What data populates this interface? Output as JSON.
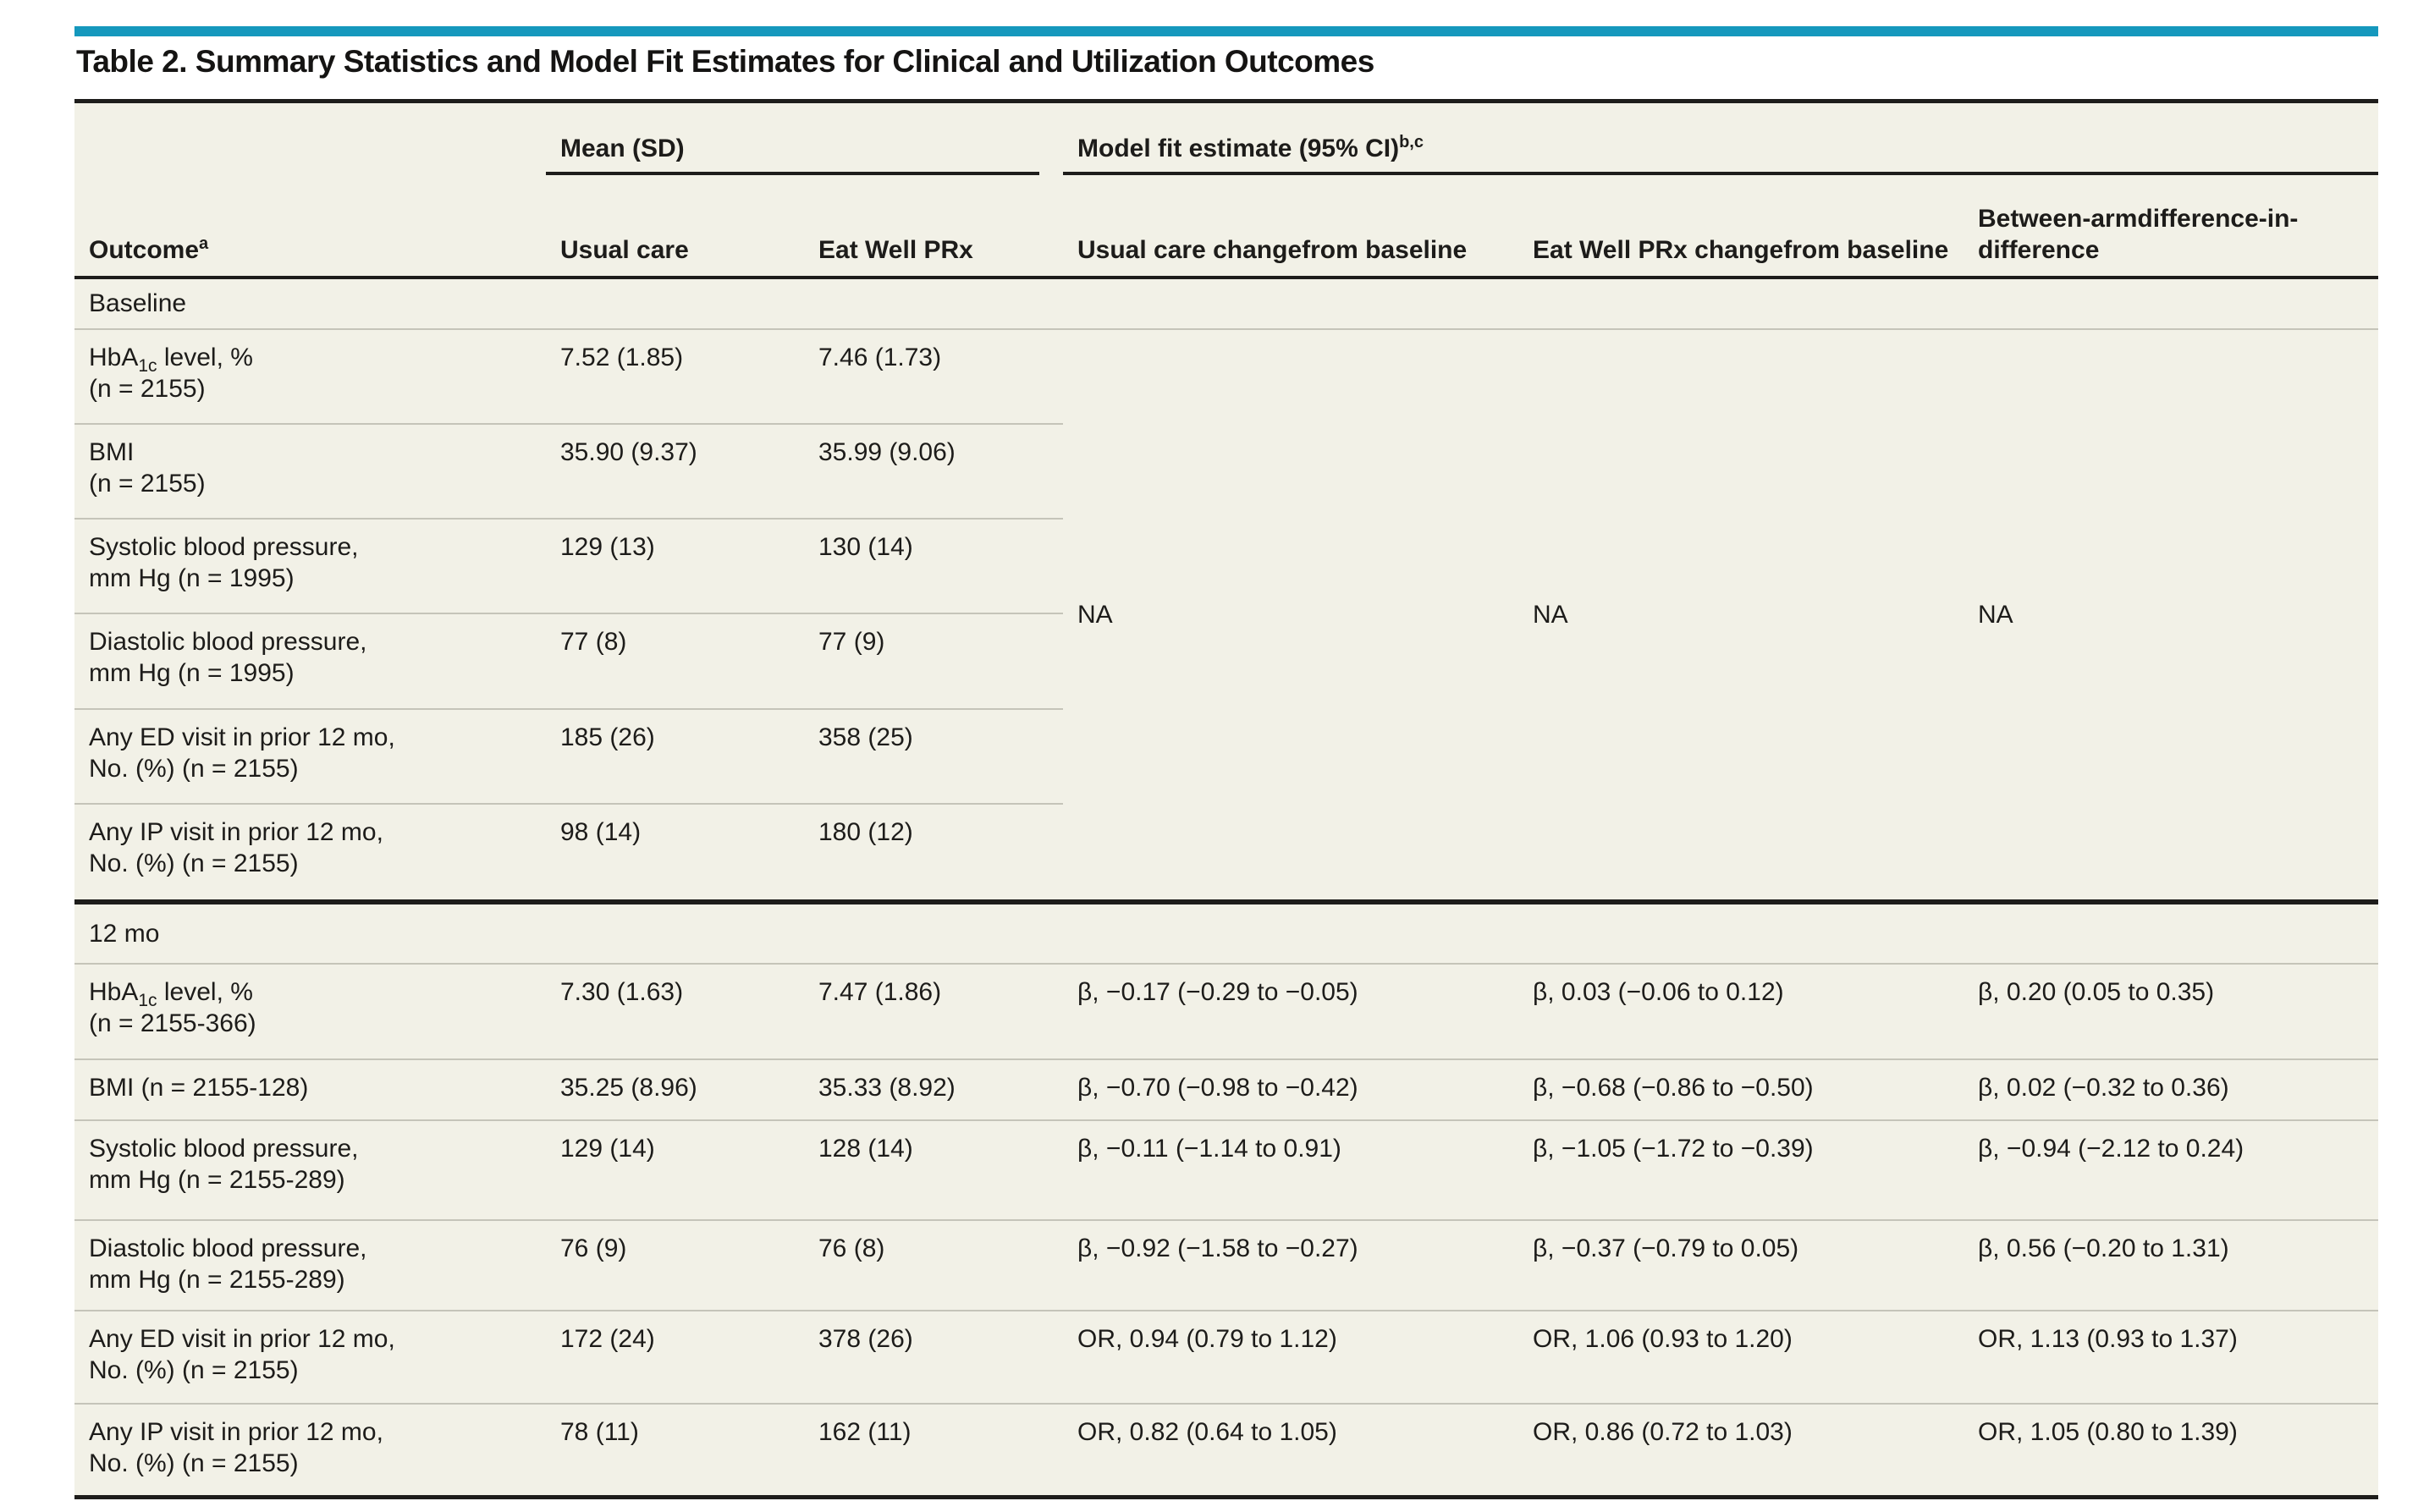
{
  "title": "Table 2. Summary Statistics and Model Fit Estimates for Clinical and Utilization Outcomes",
  "accent_color": "#1598bd",
  "header": {
    "outcome_label": "Outcome",
    "outcome_footnote": "a",
    "mean_sd_spanner": "Mean (SD)",
    "model_fit_spanner": "Model fit estimate (95% CI)",
    "model_fit_footnote": "b,c",
    "usual_care": "Usual care",
    "eat_well": "Eat Well PRx",
    "usual_change_l1": "Usual care change",
    "usual_change_l2": "from baseline",
    "eat_well_change_l1": "Eat Well PRx change",
    "eat_well_change_l2": "from baseline",
    "between_l1": "Between-arm",
    "between_l2": "difference-in-difference"
  },
  "baseline": {
    "section_label": "Baseline",
    "na": "NA",
    "rows": [
      {
        "name_pre": "HbA",
        "name_sub": "1c",
        "name_post": " level, %",
        "name_l2": "(n = 2155)",
        "usual": "7.52 (1.85)",
        "eat_well": "7.46 (1.73)"
      },
      {
        "name_l1": "BMI",
        "name_l2": "(n = 2155)",
        "usual": "35.90 (9.37)",
        "eat_well": "35.99 (9.06)"
      },
      {
        "name_l1": "Systolic blood pressure,",
        "name_l2": "mm Hg (n = 1995)",
        "usual": "129 (13)",
        "eat_well": "130 (14)"
      },
      {
        "name_l1": "Diastolic blood pressure,",
        "name_l2": "mm Hg (n = 1995)",
        "usual": "77 (8)",
        "eat_well": "77 (9)"
      },
      {
        "name_l1": "Any ED visit in prior 12 mo,",
        "name_l2": "No. (%) (n = 2155)",
        "usual": "185 (26)",
        "eat_well": "358 (25)"
      },
      {
        "name_l1": "Any IP visit in prior 12 mo,",
        "name_l2": "No. (%) (n = 2155)",
        "usual": "98 (14)",
        "eat_well": "180 (12)"
      }
    ]
  },
  "twelve_mo": {
    "section_label": "12 mo",
    "rows": [
      {
        "name_pre": "HbA",
        "name_sub": "1c",
        "name_post": " level, %",
        "name_l2": "(n = 2155-366)",
        "usual": "7.30 (1.63)",
        "eat_well": "7.47 (1.86)",
        "usual_change": "β, −0.17 (−0.29 to −0.05)",
        "eat_well_change": "β, 0.03 (−0.06 to 0.12)",
        "between": "β, 0.20 (0.05 to 0.35)"
      },
      {
        "name_l1": "BMI (n = 2155-128)",
        "usual": "35.25 (8.96)",
        "eat_well": "35.33 (8.92)",
        "usual_change": "β, −0.70 (−0.98 to −0.42)",
        "eat_well_change": "β, −0.68 (−0.86 to −0.50)",
        "between": "β, 0.02 (−0.32 to 0.36)"
      },
      {
        "name_l1": "Systolic blood pressure,",
        "name_l2": "mm Hg (n = 2155-289)",
        "usual": "129 (14)",
        "eat_well": "128 (14)",
        "usual_change": "β, −0.11 (−1.14 to 0.91)",
        "eat_well_change": "β, −1.05 (−1.72 to −0.39)",
        "between": "β, −0.94 (−2.12 to 0.24)"
      },
      {
        "name_l1": "Diastolic blood pressure,",
        "name_l2": "mm Hg (n = 2155-289)",
        "usual": "76 (9)",
        "eat_well": "76 (8)",
        "usual_change": "β, −0.92 (−1.58 to −0.27)",
        "eat_well_change": "β, −0.37 (−0.79 to 0.05)",
        "between": "β, 0.56 (−0.20 to 1.31)"
      },
      {
        "name_l1": "Any ED visit in prior 12 mo,",
        "name_l2": "No. (%) (n = 2155)",
        "usual": "172 (24)",
        "eat_well": "378 (26)",
        "usual_change": "OR, 0.94 (0.79 to 1.12)",
        "eat_well_change": "OR, 1.06 (0.93 to 1.20)",
        "between": "OR, 1.13 (0.93 to 1.37)"
      },
      {
        "name_l1": "Any IP visit in prior 12 mo,",
        "name_l2": "No. (%) (n = 2155)",
        "usual": "78 (11)",
        "eat_well": "162 (11)",
        "usual_change": "OR, 0.82 (0.64 to 1.05)",
        "eat_well_change": "OR, 0.86 (0.72 to 1.03)",
        "between": "OR, 1.05 (0.80 to 1.39)"
      }
    ]
  }
}
